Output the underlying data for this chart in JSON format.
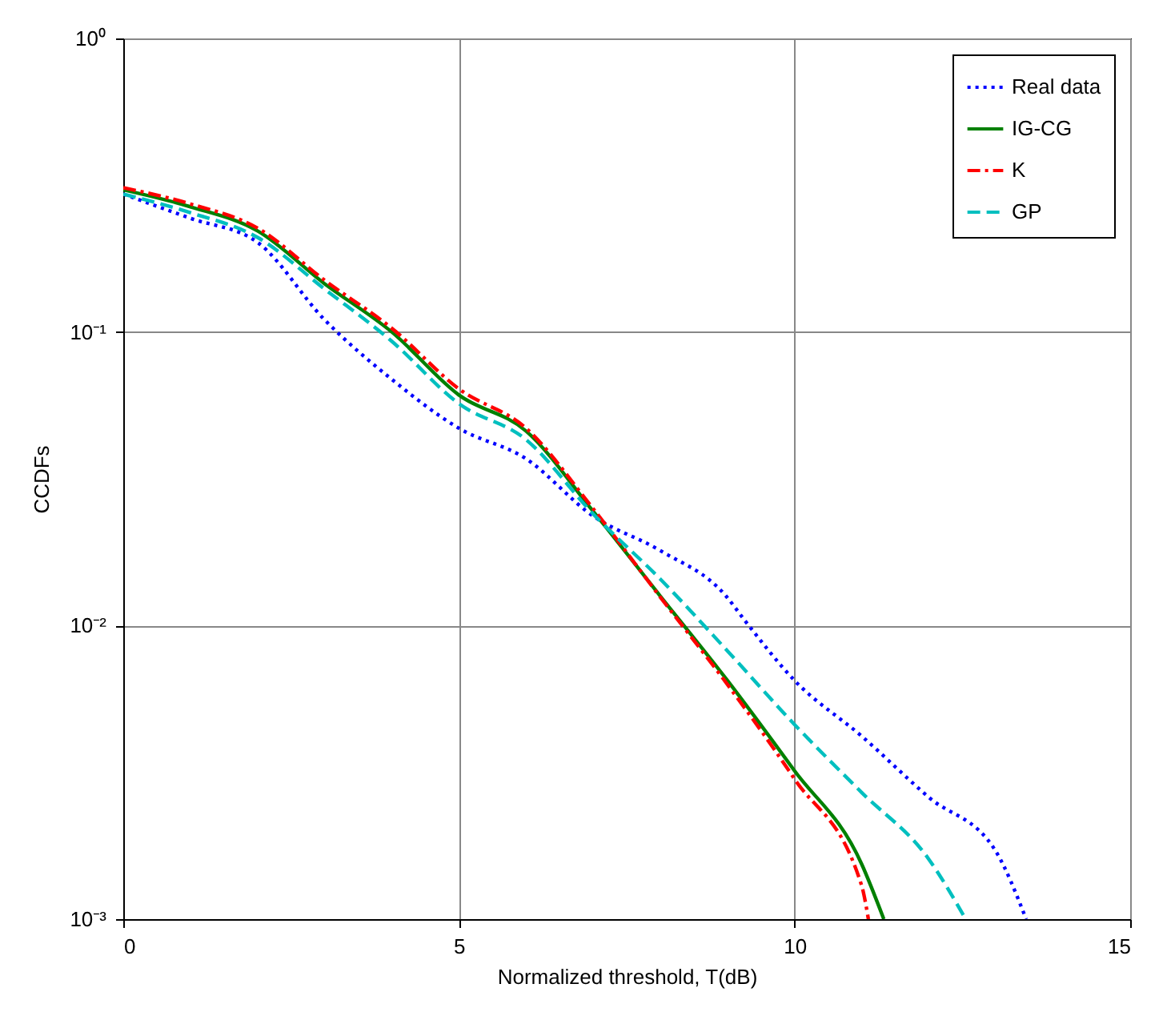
{
  "chart_data": {
    "type": "line",
    "xlabel": "Normalized threshold, T(dB)",
    "ylabel": "CCDFs",
    "log": "y",
    "grid": true,
    "legend": "top right",
    "marker": "none",
    "xlim": [
      0,
      15
    ],
    "xticks": [
      0,
      5,
      10,
      15
    ],
    "ylim": [
      0.001,
      1
    ],
    "yticks": [
      {
        "value": 1,
        "label": "10⁰"
      },
      {
        "value": 0.1,
        "label": "10⁻¹"
      },
      {
        "value": 0.01,
        "label": "10⁻²"
      },
      {
        "value": 0.001,
        "label": "10⁻³"
      }
    ],
    "series": [
      {
        "name": "Real data",
        "color": "#0000ff",
        "line_style": "dotted",
        "x": [
          0,
          1,
          2,
          3,
          4,
          5,
          6,
          7,
          8,
          8.98,
          9.26,
          10,
          11,
          12,
          13,
          13.45
        ],
        "values": [
          0.295,
          0.244,
          0.202,
          0.11,
          0.069,
          0.047,
          0.037,
          0.0236,
          0.018,
          0.0126,
          0.0104,
          0.0065,
          0.0042,
          0.0026,
          0.0017,
          0.001
        ]
      },
      {
        "name": "IG-CG",
        "color": "#008000",
        "line_style": "solid",
        "x": [
          0,
          1,
          2,
          3,
          4,
          5,
          6,
          7,
          8,
          9,
          10,
          11,
          11.33
        ],
        "values": [
          0.305,
          0.267,
          0.221,
          0.146,
          0.1,
          0.061,
          0.046,
          0.0245,
          0.0126,
          0.0065,
          0.0032,
          0.00154,
          0.001
        ]
      },
      {
        "name": "K",
        "color": "#ff0000",
        "line_style": "dashdot",
        "x": [
          0,
          1,
          2,
          3,
          4,
          5,
          6,
          7,
          8,
          9,
          10,
          11,
          11.1
        ],
        "values": [
          0.31,
          0.273,
          0.226,
          0.15,
          0.103,
          0.064,
          0.047,
          0.025,
          0.0125,
          0.0063,
          0.003,
          0.0013,
          0.001
        ]
      },
      {
        "name": "GP",
        "color": "#00bfbf",
        "line_style": "dashed",
        "x": [
          0,
          1,
          2,
          3,
          4,
          5,
          6,
          7,
          8,
          9,
          10,
          11,
          12,
          12.55
        ],
        "values": [
          0.295,
          0.255,
          0.21,
          0.14,
          0.093,
          0.057,
          0.043,
          0.024,
          0.0144,
          0.0082,
          0.0046,
          0.0027,
          0.0016,
          0.001
        ]
      }
    ]
  }
}
